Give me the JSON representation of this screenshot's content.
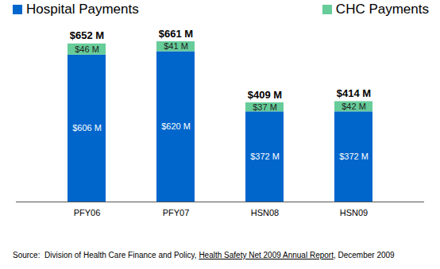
{
  "chart_data": {
    "type": "bar",
    "stacked": true,
    "categories": [
      "PFY06",
      "PFY07",
      "HSN08",
      "HSN09"
    ],
    "series": [
      {
        "name": "Hospital Payments",
        "color": "#0066cc",
        "values": [
          606,
          620,
          372,
          372
        ],
        "value_labels": [
          "$606 M",
          "$620 M",
          "$372 M",
          "$372 M"
        ]
      },
      {
        "name": "CHC Payments",
        "color": "#66cc99",
        "values": [
          46,
          41,
          37,
          42
        ],
        "value_labels": [
          "$46 M",
          "$41 M",
          "$37 M",
          "$42 M"
        ]
      }
    ],
    "totals": [
      652,
      661,
      409,
      414
    ],
    "total_labels": [
      "$652 M",
      "$661 M",
      "$409 M",
      "$414 M"
    ],
    "ylim": [
      0,
      720
    ],
    "yticks": [],
    "tick_labels": "x",
    "data_labels": true,
    "legend": "top",
    "caption": [
      "Source:  Division of Health Care Finance and Policy, ",
      "Health Safety Net 2009 Annual Report",
      ", December 2009"
    ]
  }
}
